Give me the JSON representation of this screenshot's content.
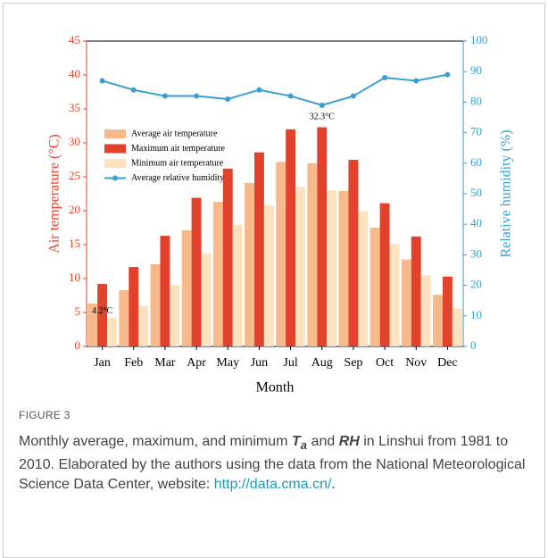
{
  "chart_data": {
    "type": "bar_line",
    "xlabel": "Month",
    "ylabel": "Air temperature (°C)",
    "y2label": "Relative humidity (%)",
    "categories": [
      "Jan",
      "Feb",
      "Mar",
      "Apr",
      "May",
      "Jun",
      "Jul",
      "Aug",
      "Sep",
      "Oct",
      "Nov",
      "Dec"
    ],
    "series": [
      {
        "name": "Average air temperature",
        "type": "bar",
        "color": "#f7b98a",
        "values": [
          6.3,
          8.3,
          12.1,
          17.1,
          21.3,
          24.1,
          27.2,
          27.0,
          22.9,
          17.5,
          12.8,
          7.6
        ]
      },
      {
        "name": "Maximum air temperature",
        "type": "bar",
        "color": "#e2412b",
        "values": [
          9.2,
          11.7,
          16.3,
          21.9,
          26.2,
          28.6,
          32.0,
          32.3,
          27.5,
          21.1,
          16.2,
          10.3
        ]
      },
      {
        "name": "Minimum air temperature",
        "type": "bar",
        "color": "#fde2c0",
        "values": [
          4.2,
          6.0,
          9.1,
          13.7,
          17.9,
          20.8,
          23.5,
          23.0,
          19.9,
          15.1,
          10.5,
          5.6
        ]
      },
      {
        "name": "Average relative humidity",
        "type": "line",
        "axis": "y2",
        "color": "#3a9fcf",
        "values": [
          87,
          84,
          82,
          82,
          81,
          84,
          82,
          79,
          82,
          88,
          87,
          89
        ]
      }
    ],
    "annotations": [
      "32.3°C",
      "4.2°C"
    ],
    "ylim": [
      0,
      45
    ],
    "yticks": [
      0,
      5,
      10,
      15,
      20,
      25,
      30,
      35,
      40,
      45
    ],
    "y2lim": [
      0,
      100
    ],
    "y2ticks": [
      0,
      10,
      20,
      30,
      40,
      50,
      60,
      70,
      80,
      90,
      100
    ],
    "axis_colors": {
      "y": "#e8402a",
      "y2": "#3a9fcf"
    },
    "legend": "upper left",
    "grid": false
  },
  "figure": {
    "label": "FIGURE 3",
    "caption": [
      "Monthly average, maximum, and minimum ",
      "T",
      "a",
      " and ",
      "RH",
      " in Linshui from 1981 to 2010. Elaborated by the authors using the data from the National Meteorological Science Data Center, website: ",
      "http://data.cma.cn/",
      "."
    ]
  }
}
